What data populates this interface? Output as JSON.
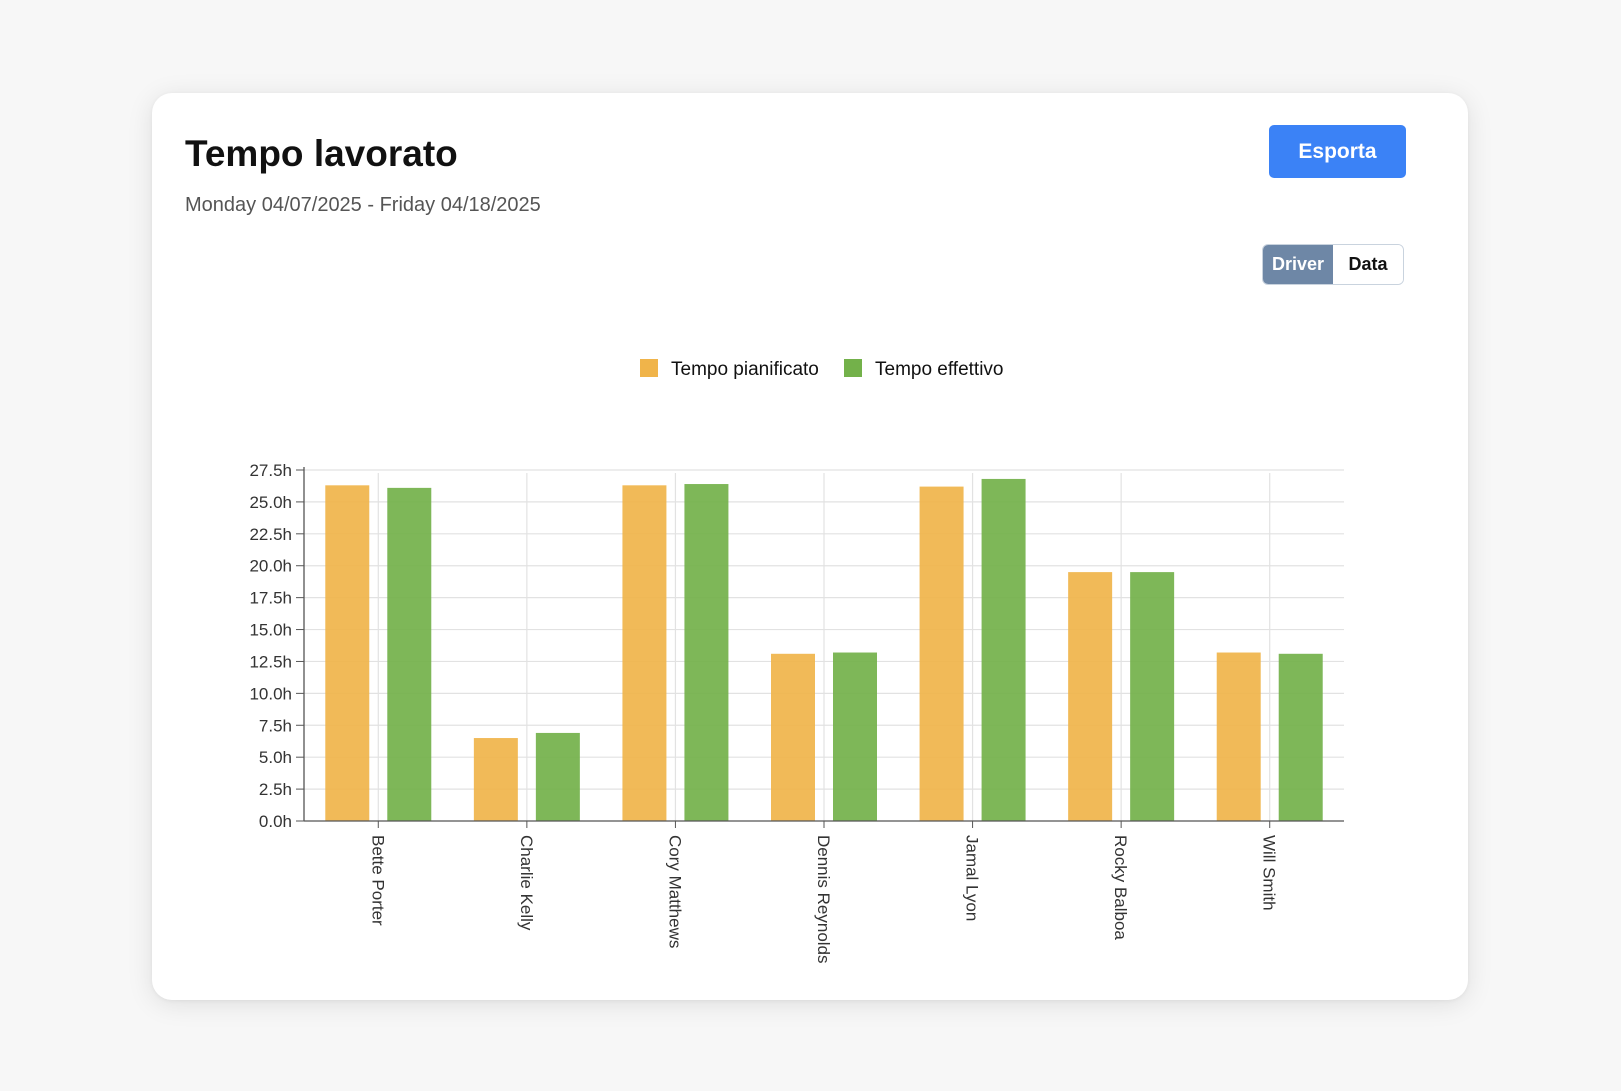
{
  "header": {
    "title": "Tempo lavorato",
    "date_range": "Monday 04/07/2025 - Friday 04/18/2025",
    "export_label": "Esporta"
  },
  "toggle": {
    "driver_label": "Driver",
    "data_label": "Data",
    "selected": "Driver"
  },
  "colors": {
    "accent": "#3b82f6",
    "toggle_active": "#6e87a6",
    "planned": "#f0b44a",
    "actual": "#73b14a"
  },
  "chart_data": {
    "type": "bar",
    "categories": [
      "Bette Porter",
      "Charlie Kelly",
      "Cory Matthews",
      "Dennis Reynolds",
      "Jamal Lyon",
      "Rocky Balboa",
      "Will Smith"
    ],
    "series": [
      {
        "name": "Tempo pianificato",
        "color": "#f0b44a",
        "values": [
          26.3,
          6.5,
          26.3,
          13.1,
          26.2,
          19.5,
          13.2
        ]
      },
      {
        "name": "Tempo effettivo",
        "color": "#73b14a",
        "values": [
          26.1,
          6.9,
          26.4,
          13.2,
          26.8,
          19.5,
          13.1
        ]
      }
    ],
    "yticks": [
      "0.0h",
      "2.5h",
      "5.0h",
      "7.5h",
      "10.0h",
      "12.5h",
      "15.0h",
      "17.5h",
      "20.0h",
      "22.5h",
      "25.0h",
      "27.5h"
    ],
    "ylim": [
      0,
      27.5
    ],
    "ytick_step": 2.5,
    "grid": true,
    "legend_position": "top-center"
  }
}
